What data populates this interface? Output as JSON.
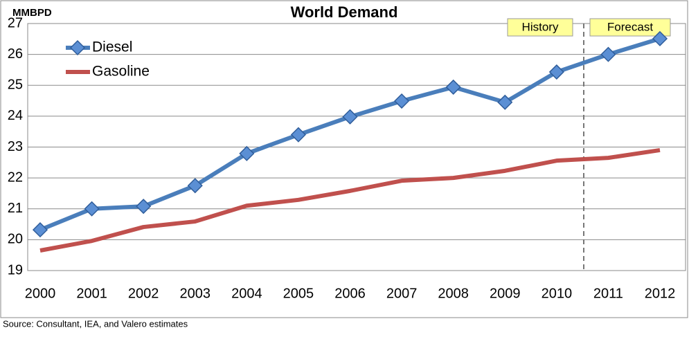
{
  "chart_data": {
    "type": "line",
    "title": "World Demand",
    "y_label": "MMBPD",
    "categories": [
      "2000",
      "2001",
      "2002",
      "2003",
      "2004",
      "2005",
      "2006",
      "2007",
      "2008",
      "2009",
      "2010",
      "2011",
      "2012"
    ],
    "series": [
      {
        "name": "Diesel",
        "color": "#4a7ebb",
        "marker": "diamond",
        "values": [
          20.32,
          21.0,
          21.08,
          21.75,
          22.79,
          23.4,
          23.98,
          24.49,
          24.94,
          24.45,
          25.43,
          26.0,
          26.51
        ]
      },
      {
        "name": "Gasoline",
        "color": "#c0504d",
        "values": [
          19.65,
          19.96,
          20.41,
          20.59,
          21.1,
          21.29,
          21.58,
          21.91,
          22.0,
          22.23,
          22.56,
          22.65,
          22.9
        ]
      }
    ],
    "ylim": [
      19,
      27
    ],
    "yticks": [
      19,
      20,
      21,
      22,
      23,
      24,
      25,
      26,
      27
    ],
    "grid": true,
    "legend": "top-left",
    "annotations": [
      "History",
      "Forecast"
    ],
    "source": "Source:  Consultant, IEA, and Valero estimates"
  }
}
